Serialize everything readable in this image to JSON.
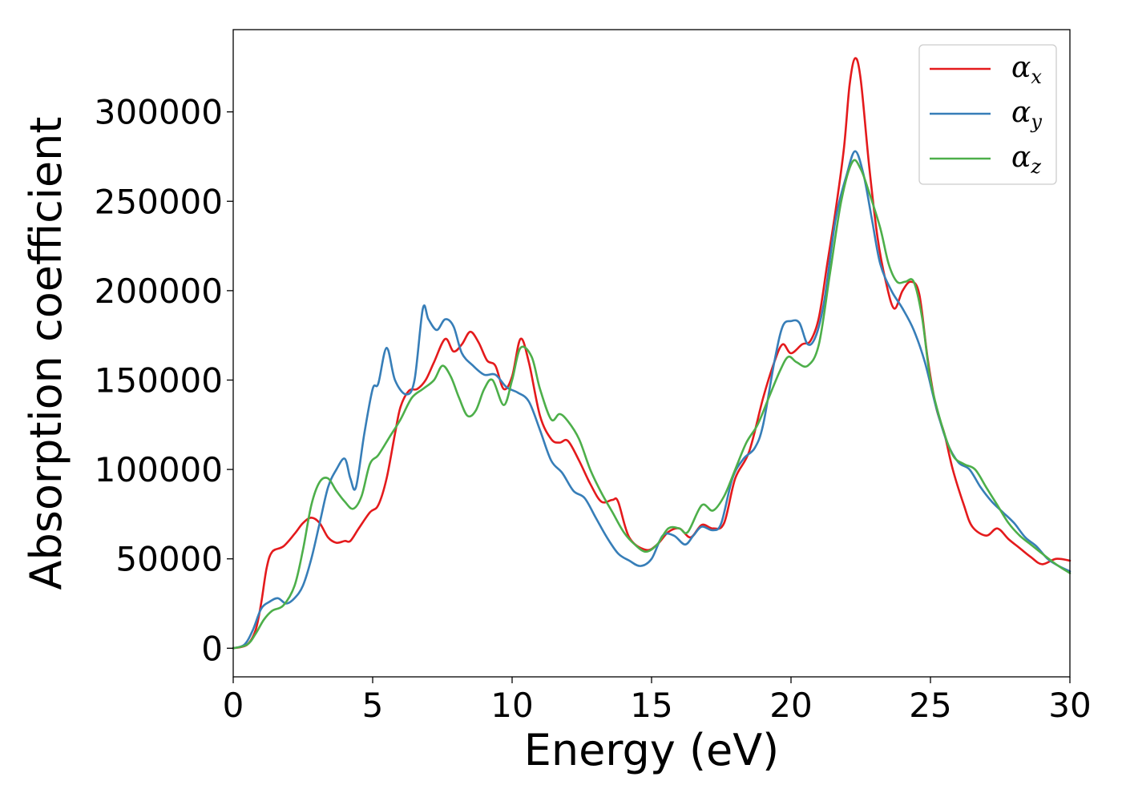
{
  "chart_data": {
    "type": "line",
    "title": "",
    "xlabel": "Energy (eV)",
    "ylabel": "Absorption coefficient",
    "xlim": [
      0,
      30
    ],
    "ylim": [
      -16000,
      346000
    ],
    "xticks": [
      0,
      5,
      10,
      15,
      20,
      25,
      30
    ],
    "yticks": [
      0,
      50000,
      100000,
      150000,
      200000,
      250000,
      300000
    ],
    "grid": false,
    "legend_position": "top-right",
    "series": [
      {
        "name": "αx",
        "legend_symbol": "α",
        "legend_subscript": "x",
        "color": "#e41a1c",
        "points": [
          [
            0,
            0
          ],
          [
            0.5,
            2000
          ],
          [
            0.8,
            10000
          ],
          [
            1.0,
            25000
          ],
          [
            1.2,
            45000
          ],
          [
            1.4,
            54000
          ],
          [
            1.8,
            57000
          ],
          [
            2.2,
            64000
          ],
          [
            2.5,
            70000
          ],
          [
            2.8,
            73000
          ],
          [
            3.1,
            70000
          ],
          [
            3.4,
            62000
          ],
          [
            3.7,
            59000
          ],
          [
            4.0,
            60000
          ],
          [
            4.2,
            60000
          ],
          [
            4.5,
            67000
          ],
          [
            4.9,
            76000
          ],
          [
            5.2,
            80000
          ],
          [
            5.5,
            95000
          ],
          [
            5.8,
            120000
          ],
          [
            6.0,
            135000
          ],
          [
            6.3,
            144000
          ],
          [
            6.6,
            145000
          ],
          [
            6.9,
            150000
          ],
          [
            7.2,
            160000
          ],
          [
            7.6,
            173000
          ],
          [
            7.9,
            166000
          ],
          [
            8.2,
            170000
          ],
          [
            8.5,
            177000
          ],
          [
            8.8,
            171000
          ],
          [
            9.1,
            161000
          ],
          [
            9.4,
            158000
          ],
          [
            9.7,
            145000
          ],
          [
            10.0,
            152000
          ],
          [
            10.3,
            173000
          ],
          [
            10.6,
            160000
          ],
          [
            11.0,
            130000
          ],
          [
            11.4,
            117000
          ],
          [
            11.7,
            115000
          ],
          [
            12.0,
            116000
          ],
          [
            12.4,
            105000
          ],
          [
            12.8,
            92000
          ],
          [
            13.2,
            82000
          ],
          [
            13.6,
            83000
          ],
          [
            13.8,
            82000
          ],
          [
            14.2,
            62000
          ],
          [
            14.8,
            55000
          ],
          [
            15.2,
            58000
          ],
          [
            15.6,
            65000
          ],
          [
            16.0,
            67000
          ],
          [
            16.4,
            62000
          ],
          [
            16.8,
            69000
          ],
          [
            17.2,
            67000
          ],
          [
            17.6,
            70000
          ],
          [
            18.0,
            95000
          ],
          [
            18.5,
            110000
          ],
          [
            19.0,
            140000
          ],
          [
            19.4,
            160000
          ],
          [
            19.7,
            170000
          ],
          [
            20.0,
            165000
          ],
          [
            20.4,
            170000
          ],
          [
            20.7,
            172000
          ],
          [
            21.0,
            185000
          ],
          [
            21.3,
            215000
          ],
          [
            21.6,
            245000
          ],
          [
            21.9,
            280000
          ],
          [
            22.1,
            315000
          ],
          [
            22.3,
            330000
          ],
          [
            22.5,
            318000
          ],
          [
            22.8,
            270000
          ],
          [
            23.1,
            230000
          ],
          [
            23.4,
            205000
          ],
          [
            23.7,
            190000
          ],
          [
            24.0,
            200000
          ],
          [
            24.3,
            205000
          ],
          [
            24.6,
            198000
          ],
          [
            24.9,
            162000
          ],
          [
            25.2,
            135000
          ],
          [
            25.5,
            120000
          ],
          [
            25.8,
            100000
          ],
          [
            26.2,
            80000
          ],
          [
            26.5,
            68000
          ],
          [
            27.0,
            63000
          ],
          [
            27.4,
            67000
          ],
          [
            27.8,
            61000
          ],
          [
            28.2,
            56000
          ],
          [
            28.6,
            51000
          ],
          [
            29.0,
            47000
          ],
          [
            29.5,
            50000
          ],
          [
            30.0,
            49000
          ]
        ]
      },
      {
        "name": "αy",
        "legend_symbol": "α",
        "legend_subscript": "y",
        "color": "#377eb8",
        "points": [
          [
            0,
            0
          ],
          [
            0.4,
            2000
          ],
          [
            0.7,
            10000
          ],
          [
            1.0,
            22000
          ],
          [
            1.3,
            26000
          ],
          [
            1.6,
            28000
          ],
          [
            1.9,
            25000
          ],
          [
            2.2,
            28000
          ],
          [
            2.5,
            35000
          ],
          [
            2.8,
            50000
          ],
          [
            3.1,
            70000
          ],
          [
            3.4,
            90000
          ],
          [
            3.7,
            100000
          ],
          [
            4.0,
            106000
          ],
          [
            4.2,
            95000
          ],
          [
            4.4,
            90000
          ],
          [
            4.7,
            120000
          ],
          [
            5.0,
            145000
          ],
          [
            5.2,
            148000
          ],
          [
            5.5,
            168000
          ],
          [
            5.8,
            150000
          ],
          [
            6.2,
            142000
          ],
          [
            6.5,
            150000
          ],
          [
            6.8,
            190000
          ],
          [
            7.0,
            184000
          ],
          [
            7.3,
            178000
          ],
          [
            7.6,
            184000
          ],
          [
            7.9,
            180000
          ],
          [
            8.2,
            165000
          ],
          [
            8.6,
            158000
          ],
          [
            9.0,
            153000
          ],
          [
            9.4,
            153000
          ],
          [
            9.8,
            146000
          ],
          [
            10.2,
            143000
          ],
          [
            10.6,
            138000
          ],
          [
            11.0,
            122000
          ],
          [
            11.4,
            105000
          ],
          [
            11.8,
            98000
          ],
          [
            12.2,
            88000
          ],
          [
            12.6,
            84000
          ],
          [
            13.0,
            73000
          ],
          [
            13.4,
            62000
          ],
          [
            13.8,
            53000
          ],
          [
            14.2,
            49000
          ],
          [
            14.6,
            46000
          ],
          [
            15.0,
            50000
          ],
          [
            15.4,
            63000
          ],
          [
            15.8,
            63000
          ],
          [
            16.2,
            58000
          ],
          [
            16.5,
            63000
          ],
          [
            16.8,
            68000
          ],
          [
            17.2,
            66000
          ],
          [
            17.5,
            70000
          ],
          [
            17.9,
            95000
          ],
          [
            18.3,
            106000
          ],
          [
            18.7,
            112000
          ],
          [
            19.0,
            125000
          ],
          [
            19.4,
            160000
          ],
          [
            19.7,
            180000
          ],
          [
            20.0,
            183000
          ],
          [
            20.3,
            182000
          ],
          [
            20.6,
            170000
          ],
          [
            20.9,
            175000
          ],
          [
            21.2,
            195000
          ],
          [
            21.6,
            240000
          ],
          [
            22.0,
            265000
          ],
          [
            22.3,
            278000
          ],
          [
            22.6,
            265000
          ],
          [
            22.9,
            240000
          ],
          [
            23.2,
            215000
          ],
          [
            23.6,
            200000
          ],
          [
            24.0,
            190000
          ],
          [
            24.4,
            178000
          ],
          [
            24.8,
            160000
          ],
          [
            25.2,
            135000
          ],
          [
            25.6,
            115000
          ],
          [
            26.0,
            104000
          ],
          [
            26.4,
            100000
          ],
          [
            26.8,
            90000
          ],
          [
            27.2,
            82000
          ],
          [
            27.6,
            76000
          ],
          [
            28.0,
            70000
          ],
          [
            28.4,
            62000
          ],
          [
            28.8,
            57000
          ],
          [
            29.2,
            50000
          ],
          [
            29.6,
            46000
          ],
          [
            30.0,
            43000
          ]
        ]
      },
      {
        "name": "αz",
        "legend_symbol": "α",
        "legend_subscript": "z",
        "color": "#4daf4a",
        "points": [
          [
            0,
            0
          ],
          [
            0.5,
            2000
          ],
          [
            0.8,
            8000
          ],
          [
            1.1,
            16000
          ],
          [
            1.4,
            21000
          ],
          [
            1.8,
            24000
          ],
          [
            2.2,
            35000
          ],
          [
            2.5,
            55000
          ],
          [
            2.8,
            80000
          ],
          [
            3.1,
            93000
          ],
          [
            3.4,
            95000
          ],
          [
            3.7,
            88000
          ],
          [
            4.0,
            82000
          ],
          [
            4.3,
            78000
          ],
          [
            4.6,
            85000
          ],
          [
            4.9,
            103000
          ],
          [
            5.2,
            108000
          ],
          [
            5.6,
            118000
          ],
          [
            6.0,
            128000
          ],
          [
            6.4,
            140000
          ],
          [
            6.8,
            145000
          ],
          [
            7.2,
            150000
          ],
          [
            7.5,
            158000
          ],
          [
            7.8,
            152000
          ],
          [
            8.1,
            140000
          ],
          [
            8.4,
            130000
          ],
          [
            8.7,
            133000
          ],
          [
            9.0,
            145000
          ],
          [
            9.3,
            150000
          ],
          [
            9.7,
            136000
          ],
          [
            10.0,
            150000
          ],
          [
            10.3,
            168000
          ],
          [
            10.7,
            163000
          ],
          [
            11.0,
            145000
          ],
          [
            11.4,
            128000
          ],
          [
            11.7,
            131000
          ],
          [
            12.0,
            127000
          ],
          [
            12.4,
            117000
          ],
          [
            12.8,
            100000
          ],
          [
            13.2,
            87000
          ],
          [
            13.6,
            76000
          ],
          [
            14.0,
            65000
          ],
          [
            14.4,
            58000
          ],
          [
            14.8,
            54000
          ],
          [
            15.2,
            58000
          ],
          [
            15.6,
            67000
          ],
          [
            16.0,
            67000
          ],
          [
            16.3,
            65000
          ],
          [
            16.8,
            80000
          ],
          [
            17.2,
            77000
          ],
          [
            17.6,
            85000
          ],
          [
            18.0,
            100000
          ],
          [
            18.4,
            115000
          ],
          [
            18.8,
            125000
          ],
          [
            19.2,
            140000
          ],
          [
            19.6,
            155000
          ],
          [
            19.9,
            163000
          ],
          [
            20.2,
            160000
          ],
          [
            20.6,
            158000
          ],
          [
            21.0,
            170000
          ],
          [
            21.4,
            210000
          ],
          [
            21.8,
            250000
          ],
          [
            22.2,
            272000
          ],
          [
            22.5,
            268000
          ],
          [
            22.8,
            255000
          ],
          [
            23.2,
            235000
          ],
          [
            23.5,
            215000
          ],
          [
            23.8,
            205000
          ],
          [
            24.1,
            205000
          ],
          [
            24.4,
            205000
          ],
          [
            24.7,
            185000
          ],
          [
            25.0,
            150000
          ],
          [
            25.4,
            125000
          ],
          [
            25.8,
            108000
          ],
          [
            26.2,
            103000
          ],
          [
            26.6,
            100000
          ],
          [
            27.0,
            90000
          ],
          [
            27.4,
            80000
          ],
          [
            27.8,
            70000
          ],
          [
            28.2,
            63000
          ],
          [
            28.6,
            58000
          ],
          [
            29.0,
            53000
          ],
          [
            29.5,
            47000
          ],
          [
            30.0,
            42000
          ]
        ]
      }
    ]
  }
}
